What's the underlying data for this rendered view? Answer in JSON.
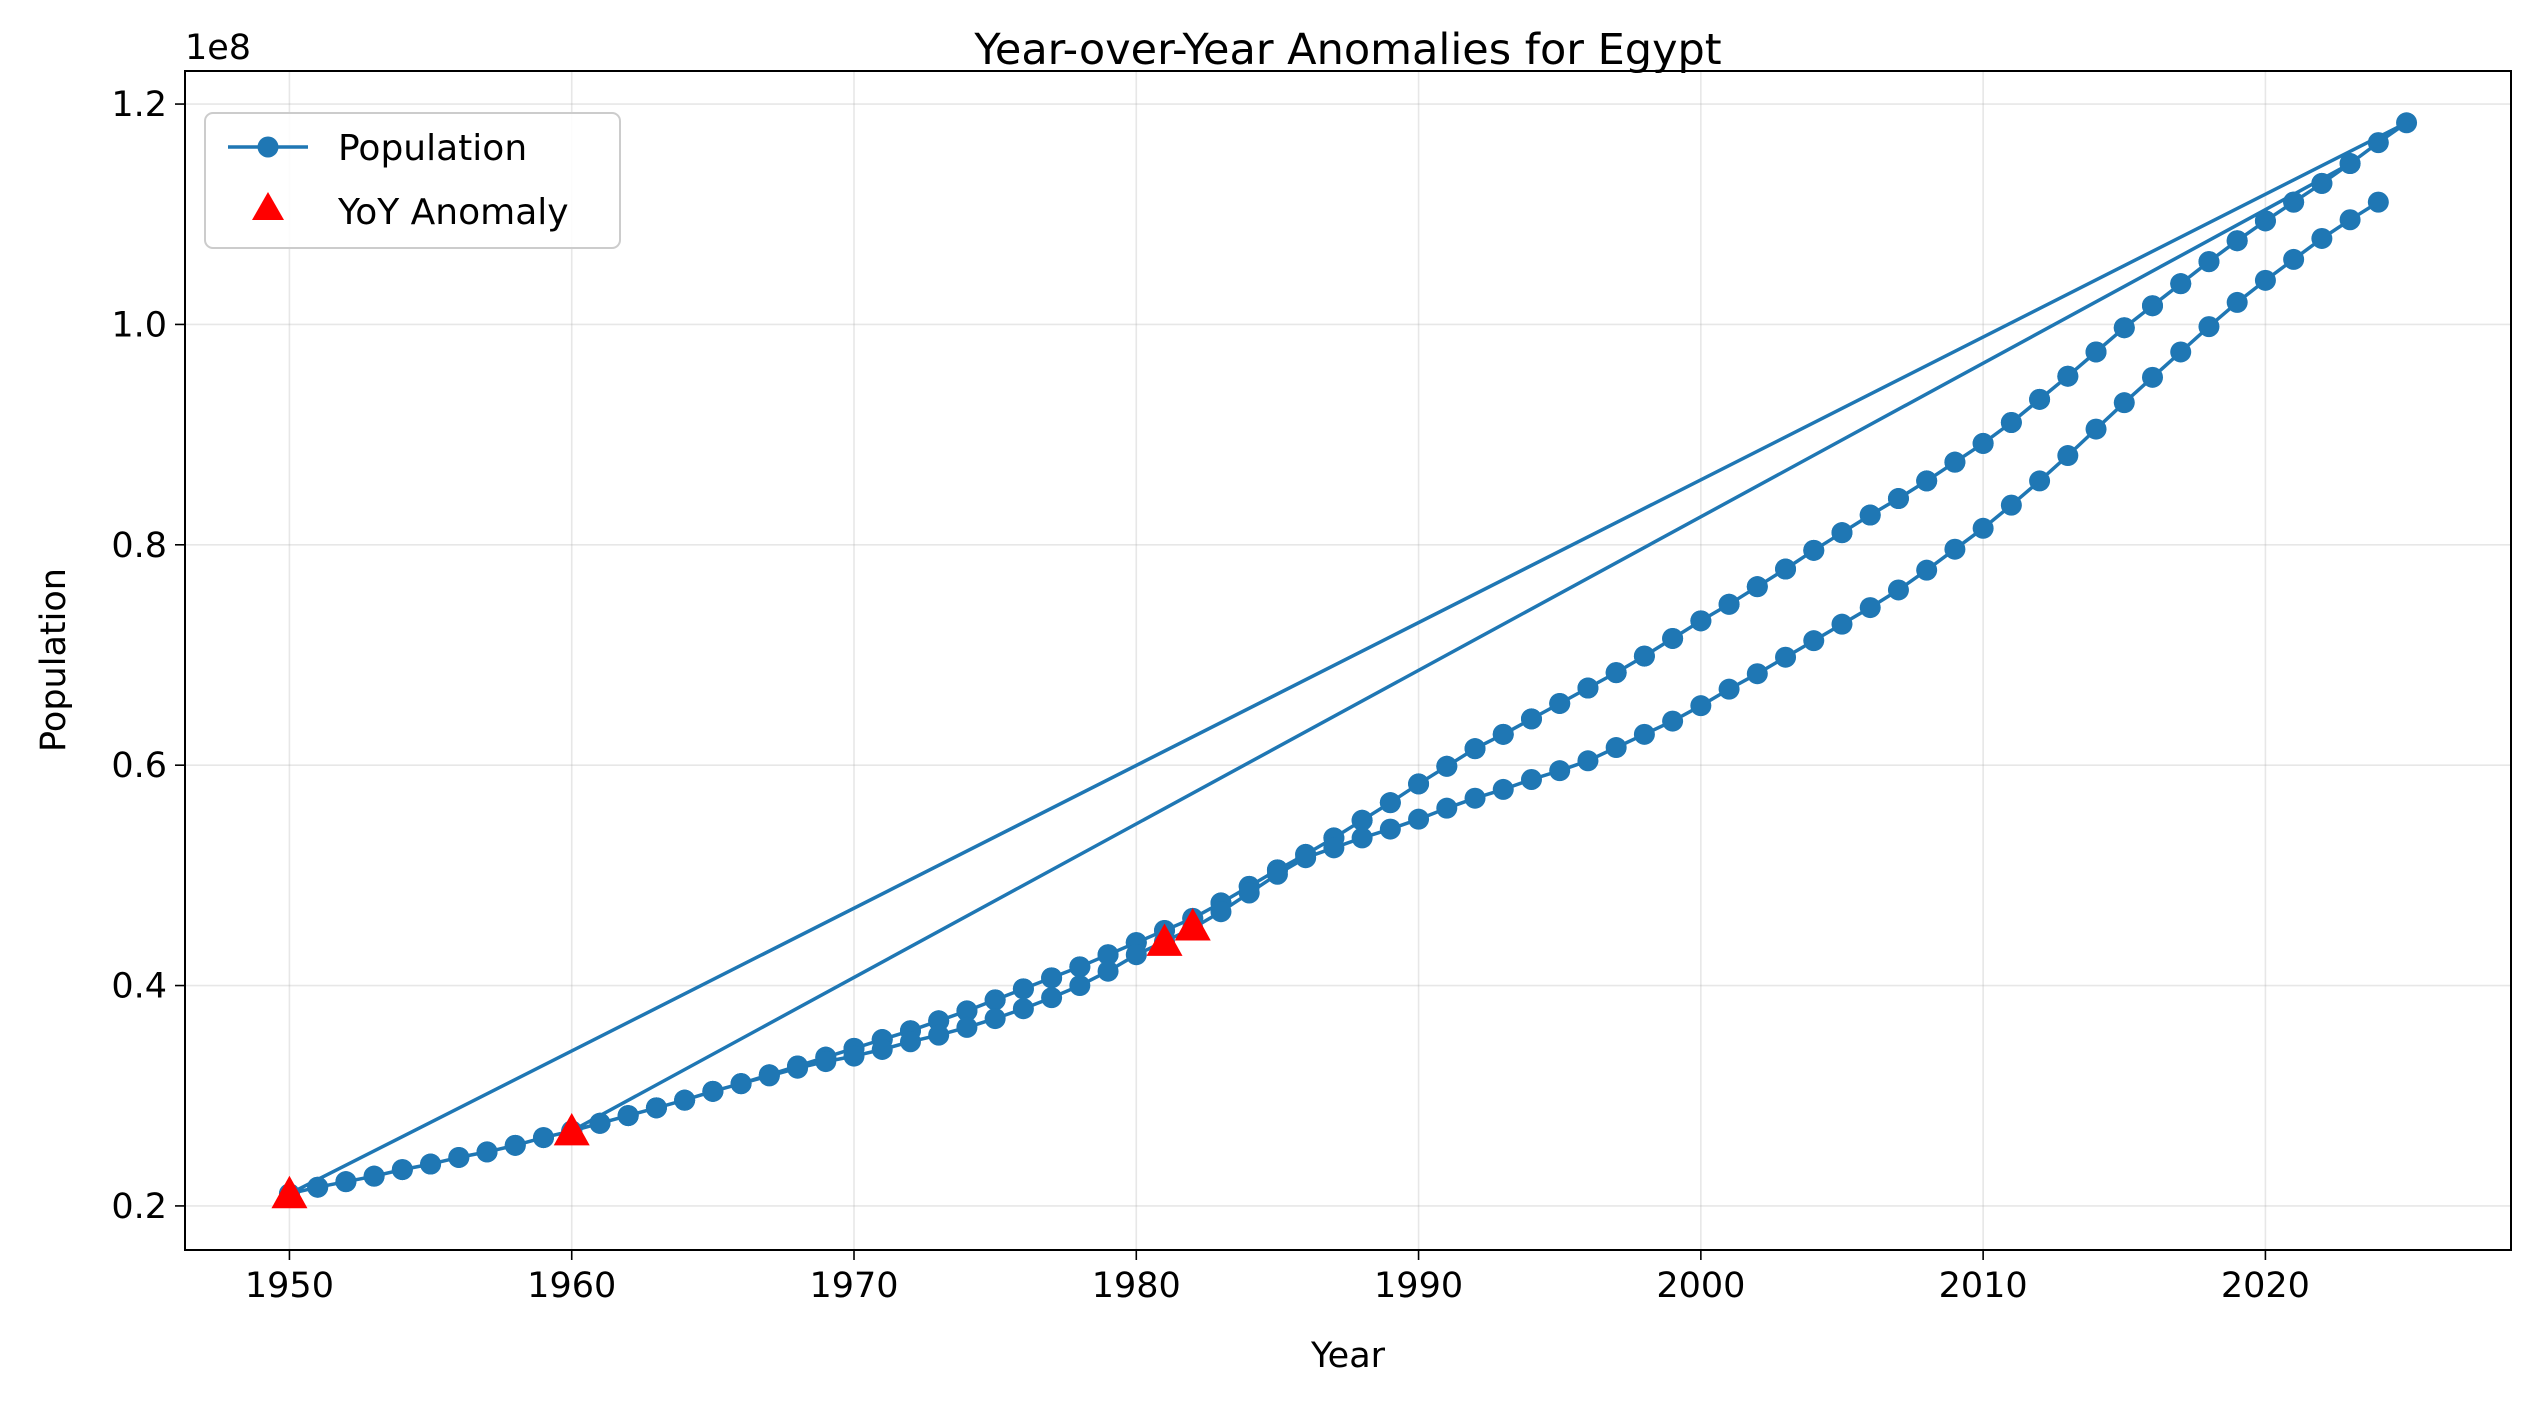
{
  "chart_data": {
    "type": "line",
    "title": "Year-over-Year Anomalies for Egypt",
    "xlabel": "Year",
    "ylabel": "Population",
    "y_offset_label": "1e8",
    "xlim": [
      1946.3,
      2028.7
    ],
    "ylim": [
      0.16,
      1.23
    ],
    "y_unit": "1e8",
    "x_ticks": [
      1950,
      1960,
      1970,
      1980,
      1990,
      2000,
      2010,
      2020
    ],
    "y_ticks": [
      0.2,
      0.4,
      0.6,
      0.8,
      1.0,
      1.2
    ],
    "y_tick_labels": [
      "0.2",
      "0.4",
      "0.6",
      "0.8",
      "1.0",
      "1.2"
    ],
    "grid": true,
    "legend_position": "top-left",
    "colors": {
      "line": "#1f77b4",
      "anomaly": "#ff0000"
    },
    "series": [
      {
        "name": "Population",
        "style": "line-marker",
        "x": [
          1950,
          1951,
          1952,
          1953,
          1954,
          1955,
          1956,
          1957,
          1958,
          1959,
          1960,
          1961,
          1962,
          1963,
          1964,
          1965,
          1966,
          1967,
          1968,
          1969,
          1970,
          1971,
          1972,
          1973,
          1974,
          1975,
          1976,
          1977,
          1978,
          1979,
          1980,
          1981,
          1982,
          1983,
          1984,
          1985,
          1986,
          1987,
          1988,
          1989,
          1990,
          1991,
          1992,
          1993,
          1994,
          1995,
          1996,
          1997,
          1998,
          1999,
          2000,
          2001,
          2002,
          2003,
          2004,
          2005,
          2006,
          2007,
          2008,
          2009,
          2010,
          2011,
          2012,
          2013,
          2014,
          2015,
          2016,
          2017,
          2018,
          2019,
          2020,
          2021,
          2022,
          2023,
          2024,
          2025,
          1950,
          1951,
          1952,
          1953,
          1954,
          1955,
          1956,
          1957,
          1958,
          1959,
          1960,
          1961,
          1962,
          1963,
          1964,
          1965,
          1966,
          1967,
          1968,
          1969,
          1970,
          1971,
          1972,
          1973,
          1974,
          1975,
          1976,
          1977,
          1978,
          1979,
          1980,
          1981,
          1982,
          1983,
          1984,
          1985,
          1986,
          1987,
          1988,
          1989,
          1990,
          1991,
          1992,
          1993,
          1994,
          1995,
          1996,
          1997,
          1998,
          1999,
          2000,
          2001,
          2002,
          2003,
          2004,
          2005,
          2006,
          2007,
          2008,
          2009,
          2010,
          2011,
          2012,
          2013,
          2014,
          2015,
          2016,
          2017,
          2018,
          2019,
          2020,
          2021,
          2022,
          2023,
          1960,
          1961,
          1962,
          1963,
          1964,
          1965,
          1966,
          1967,
          1968,
          1969,
          1970,
          1971,
          1972,
          1973,
          1974,
          1975,
          1976,
          1977,
          1978,
          1979,
          1980,
          1981,
          1982,
          1983,
          1984,
          1985,
          1986,
          1987,
          1988,
          1989,
          1990,
          1991,
          1992,
          1993,
          1994,
          1995,
          1996,
          1997,
          1998,
          1999,
          2000,
          2001,
          2002,
          2003,
          2004,
          2005,
          2006,
          2007,
          2008,
          2009,
          2010,
          2011,
          2012,
          2013,
          2014,
          2015,
          2016,
          2017,
          2018,
          2019,
          2020,
          2021,
          2022,
          2023,
          2024
        ],
        "y": [
          0.211,
          0.217,
          0.222,
          0.227,
          0.233,
          0.238,
          0.244,
          0.249,
          0.255,
          0.262,
          0.268,
          0.275,
          0.282,
          0.289,
          0.296,
          0.304,
          0.311,
          0.319,
          0.327,
          0.335,
          0.343,
          0.351,
          0.359,
          0.368,
          0.377,
          0.387,
          0.397,
          0.407,
          0.417,
          0.428,
          0.439,
          0.45,
          0.461,
          0.475,
          0.49,
          0.505,
          0.519,
          0.534,
          0.55,
          0.566,
          0.583,
          0.599,
          0.615,
          0.628,
          0.642,
          0.656,
          0.67,
          0.684,
          0.699,
          0.715,
          0.731,
          0.746,
          0.762,
          0.778,
          0.795,
          0.811,
          0.827,
          0.842,
          0.858,
          0.875,
          0.892,
          0.911,
          0.932,
          0.953,
          0.975,
          0.997,
          1.017,
          1.037,
          1.057,
          1.076,
          1.094,
          1.111,
          1.128,
          1.146,
          1.165,
          1.183,
          0.211,
          0.217,
          0.222,
          0.227,
          0.233,
          0.238,
          0.244,
          0.249,
          0.255,
          0.262,
          0.268,
          0.275,
          0.282,
          0.289,
          0.296,
          0.304,
          0.311,
          0.319,
          0.327,
          0.335,
          0.343,
          0.351,
          0.359,
          0.368,
          0.377,
          0.387,
          0.397,
          0.407,
          0.417,
          0.428,
          0.439,
          0.45,
          0.461,
          0.475,
          0.49,
          0.505,
          0.519,
          0.534,
          0.55,
          0.566,
          0.583,
          0.599,
          0.615,
          0.628,
          0.642,
          0.656,
          0.67,
          0.684,
          0.699,
          0.715,
          0.731,
          0.746,
          0.762,
          0.778,
          0.795,
          0.811,
          0.827,
          0.842,
          0.858,
          0.875,
          0.892,
          0.911,
          0.932,
          0.953,
          0.975,
          0.997,
          1.017,
          1.037,
          1.057,
          1.076,
          1.094,
          1.111,
          1.128,
          1.146,
          0.268,
          0.275,
          0.282,
          0.289,
          0.296,
          0.304,
          0.311,
          0.318,
          0.325,
          0.331,
          0.336,
          0.342,
          0.349,
          0.355,
          0.362,
          0.37,
          0.379,
          0.389,
          0.4,
          0.413,
          0.428,
          0.44,
          0.452,
          0.467,
          0.484,
          0.501,
          0.516,
          0.525,
          0.534,
          0.542,
          0.551,
          0.561,
          0.57,
          0.578,
          0.587,
          0.595,
          0.604,
          0.616,
          0.628,
          0.64,
          0.654,
          0.669,
          0.683,
          0.698,
          0.713,
          0.728,
          0.743,
          0.759,
          0.777,
          0.796,
          0.815,
          0.836,
          0.858,
          0.881,
          0.905,
          0.929,
          0.952,
          0.975,
          0.998,
          1.02,
          1.04,
          1.059,
          1.078,
          1.095,
          1.111
        ]
      },
      {
        "name": "YoY Anomaly",
        "style": "triangle-marker",
        "x": [
          1950,
          1960,
          1981,
          1982
        ],
        "y": [
          0.211,
          0.268,
          0.44,
          0.454
        ]
      }
    ]
  }
}
